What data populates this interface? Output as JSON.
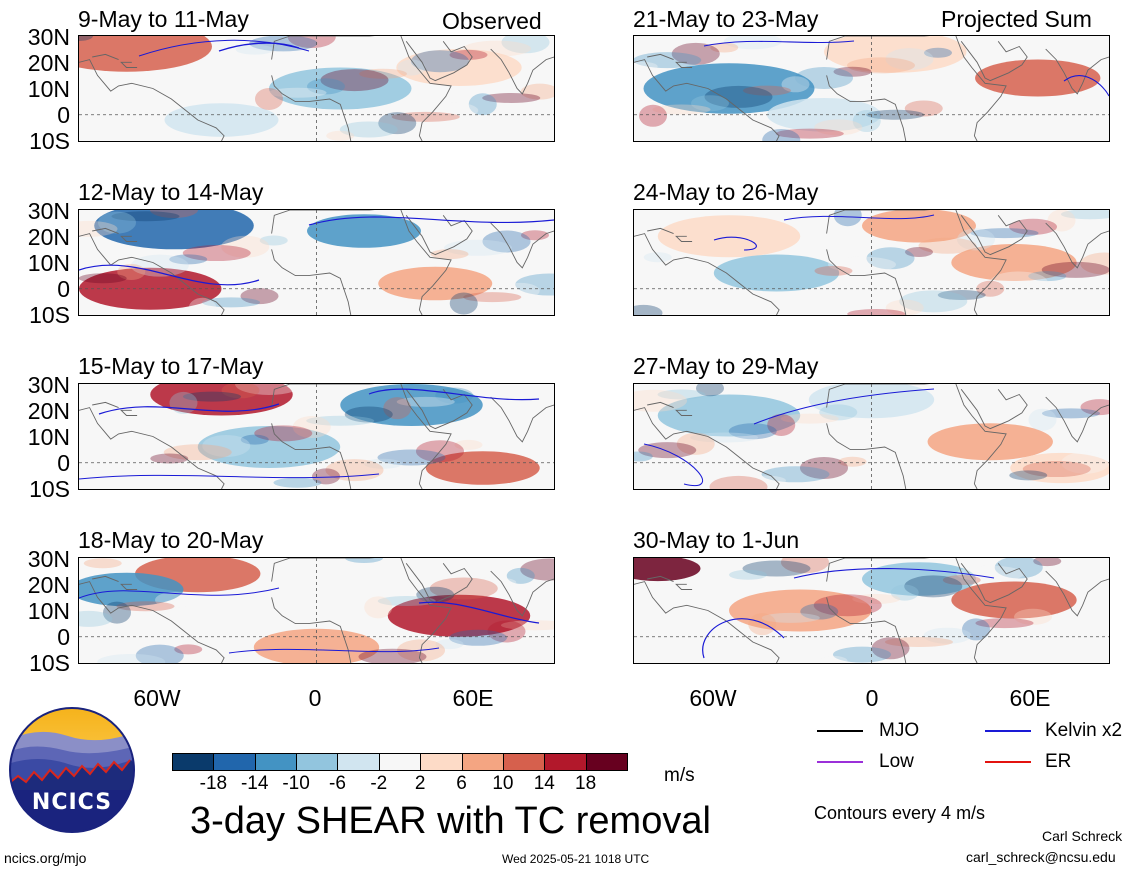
{
  "panels": {
    "left": [
      {
        "title": "9-May to 11-May",
        "tag": "Observed"
      },
      {
        "title": "12-May to 14-May",
        "tag": ""
      },
      {
        "title": "15-May to 17-May",
        "tag": ""
      },
      {
        "title": "18-May to 20-May",
        "tag": ""
      }
    ],
    "right": [
      {
        "title": "21-May to 23-May",
        "tag": "Projected Sum"
      },
      {
        "title": "24-May to 26-May",
        "tag": ""
      },
      {
        "title": "27-May to 29-May",
        "tag": ""
      },
      {
        "title": "30-May to 1-Jun",
        "tag": ""
      }
    ]
  },
  "lat_labels": [
    "30N",
    "20N",
    "10N",
    "0",
    "10S"
  ],
  "lon_labels": [
    "60W",
    "0",
    "60E"
  ],
  "colorbar": {
    "labels": [
      "-18",
      "-14",
      "-10",
      "-6",
      "-2",
      "2",
      "6",
      "10",
      "14",
      "18"
    ],
    "unit": "m/s",
    "colors": [
      "#0a3a6b",
      "#2166ac",
      "#4393c3",
      "#92c5de",
      "#d1e5f0",
      "#f7f7f7",
      "#fddbc7",
      "#f4a582",
      "#d6604d",
      "#b2182b",
      "#67001f"
    ]
  },
  "legend": {
    "items": [
      {
        "label": "MJO",
        "color": "#000000"
      },
      {
        "label": "Kelvin x2",
        "color": "#1a1ad6"
      },
      {
        "label": "Low",
        "color": "#9b30d9"
      },
      {
        "label": "ER",
        "color": "#e3130f"
      }
    ],
    "note": "Contours every 4 m/s"
  },
  "main_title": "3-day SHEAR with TC removal",
  "logo_text": "NCICS",
  "footer": {
    "url": "ncics.org/mjo",
    "timestamp": "Wed 2025-05-21 1018 UTC",
    "author": "Carl Schreck",
    "email": "carl_schreck@ncsu.edu"
  }
}
